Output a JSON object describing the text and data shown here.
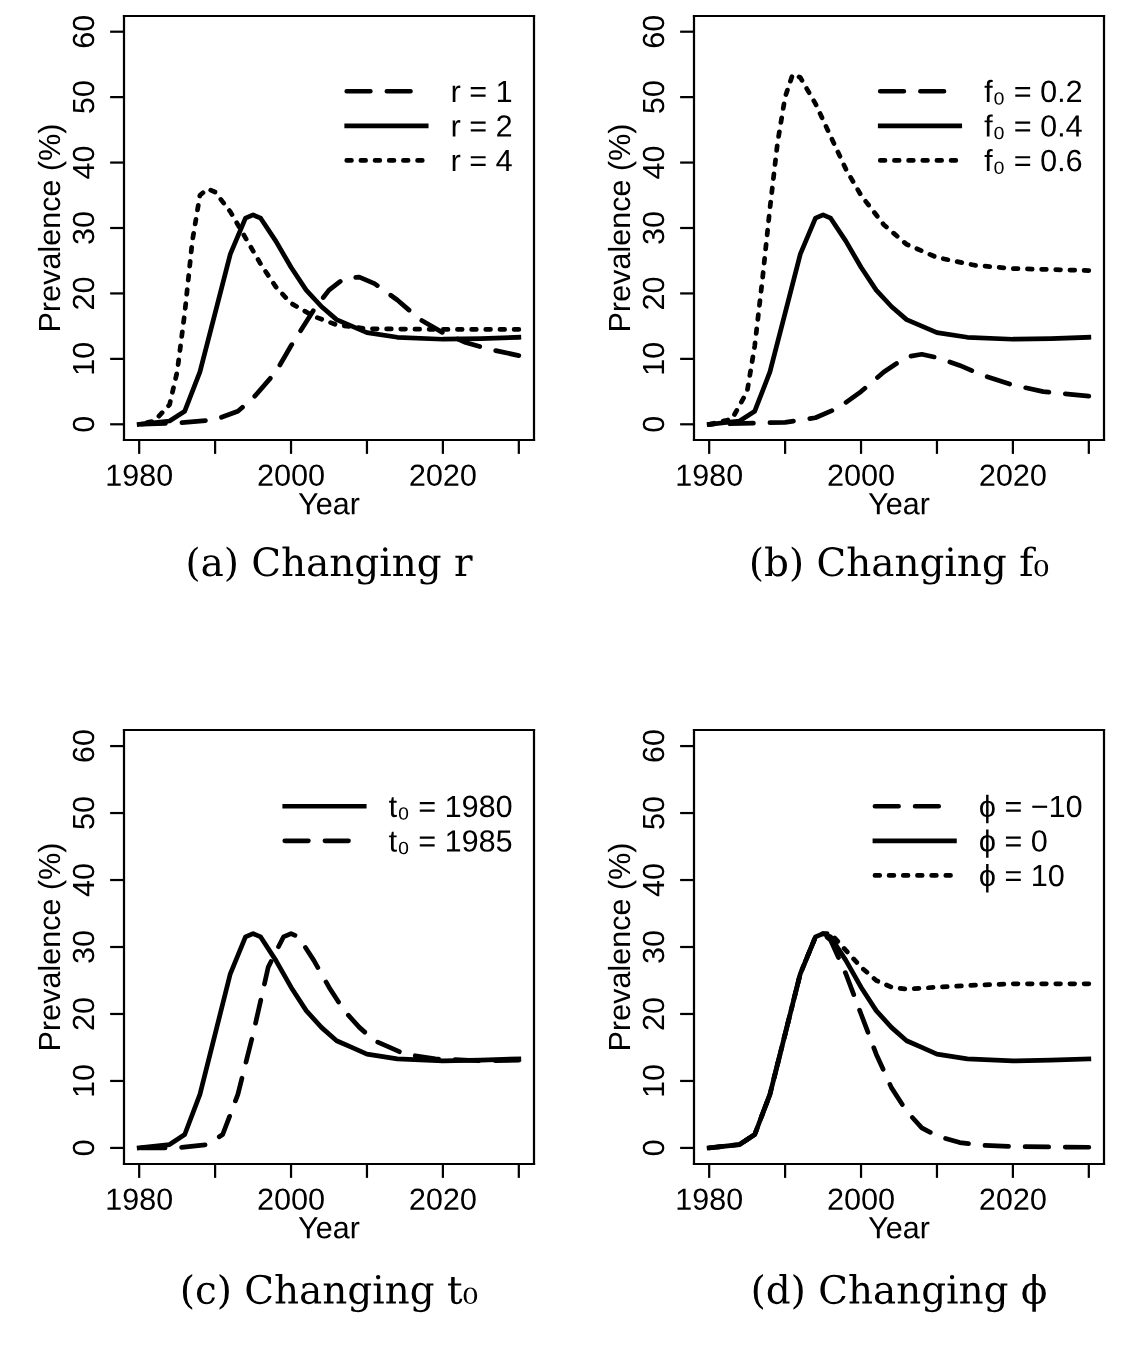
{
  "chart_data": [
    {
      "type": "line",
      "title": "(a) Changing r",
      "xlabel": "Year",
      "ylabel": "Prevalence (%)",
      "xlim": [
        1978,
        2032
      ],
      "ylim": [
        -2.4,
        62.4
      ],
      "xticks": [
        1980,
        {
          "value": 1990,
          "label": null
        },
        2000,
        {
          "value": 2010,
          "label": null
        },
        2020,
        {
          "value": 2030,
          "label": null
        }
      ],
      "yticks": [
        0,
        10,
        20,
        30,
        40,
        50,
        60
      ],
      "legend": "top right",
      "grid": false,
      "marker": "none",
      "series": [
        {
          "name": "r = 1",
          "color": "#000000",
          "line_style": "dashed",
          "x": [
            1980,
            1985,
            1990,
            1993,
            1995,
            1998,
            2000,
            2003,
            2005,
            2007,
            2009,
            2011,
            2014,
            2017,
            2020,
            2023,
            2026,
            2030
          ],
          "values": [
            0,
            0.2,
            0.7,
            2,
            4,
            8,
            12,
            17.5,
            20.5,
            22.3,
            22.5,
            21.5,
            19,
            16,
            14,
            12.5,
            11.5,
            10.5
          ]
        },
        {
          "name": "r = 2",
          "color": "#000000",
          "line_style": "solid",
          "x": [
            1980,
            1984,
            1986,
            1988,
            1990,
            1992,
            1994,
            1995,
            1996,
            1998,
            2000,
            2002,
            2004,
            2006,
            2008,
            2010,
            2014,
            2020,
            2025,
            2030
          ],
          "values": [
            0,
            0.5,
            2,
            8,
            17,
            26,
            31.5,
            32,
            31.5,
            28,
            24,
            20.5,
            18,
            16,
            15,
            14,
            13.3,
            13,
            13.1,
            13.3
          ]
        },
        {
          "name": "r = 4",
          "color": "#000000",
          "line_style": "dotted",
          "x": [
            1980,
            1982,
            1984,
            1985,
            1986,
            1987,
            1988,
            1989,
            1990,
            1992,
            1994,
            1996,
            1998,
            2000,
            2003,
            2006,
            2010,
            2020,
            2030
          ],
          "values": [
            0,
            0.5,
            3,
            8,
            17,
            28,
            35,
            36,
            35.5,
            32.5,
            28.5,
            24.5,
            21,
            18.5,
            16.5,
            15.2,
            14.6,
            14.5,
            14.5
          ]
        }
      ]
    },
    {
      "type": "line",
      "title": "(b) Changing f₀",
      "xlabel": "Year",
      "ylabel": "Prevalence (%)",
      "xlim": [
        1978,
        2032
      ],
      "ylim": [
        -2.4,
        62.4
      ],
      "xticks": [
        1980,
        {
          "value": 1990,
          "label": null
        },
        2000,
        {
          "value": 2010,
          "label": null
        },
        2020,
        {
          "value": 2030,
          "label": null
        }
      ],
      "yticks": [
        0,
        10,
        20,
        30,
        40,
        50,
        60
      ],
      "legend": "top right",
      "grid": false,
      "marker": "none",
      "series": [
        {
          "name": "f₀ = 0.2",
          "color": "#000000",
          "line_style": "dashed",
          "x": [
            1980,
            1990,
            1994,
            1997,
            2000,
            2003,
            2006,
            2008,
            2010,
            2013,
            2016,
            2020,
            2024,
            2030
          ],
          "values": [
            0,
            0.3,
            1,
            2.5,
            5,
            8,
            10.3,
            10.7,
            10.2,
            9,
            7.5,
            6,
            5,
            4.3
          ]
        },
        {
          "name": "f₀ = 0.4",
          "color": "#000000",
          "line_style": "solid",
          "x": [
            1980,
            1984,
            1986,
            1988,
            1990,
            1992,
            1994,
            1995,
            1996,
            1998,
            2000,
            2002,
            2004,
            2006,
            2008,
            2010,
            2014,
            2020,
            2025,
            2030
          ],
          "values": [
            0,
            0.5,
            2,
            8,
            17,
            26,
            31.5,
            32,
            31.5,
            28,
            24,
            20.5,
            18,
            16,
            15,
            14,
            13.3,
            13,
            13.1,
            13.3
          ]
        },
        {
          "name": "f₀ = 0.6",
          "color": "#000000",
          "line_style": "dotted",
          "x": [
            1980,
            1983,
            1985,
            1986,
            1987,
            1988,
            1989,
            1990,
            1991,
            1992,
            1994,
            1996,
            1998,
            2000,
            2003,
            2006,
            2010,
            2015,
            2020,
            2030
          ],
          "values": [
            0,
            0.8,
            5,
            12,
            22,
            33,
            43,
            50,
            53.5,
            53,
            49,
            44,
            39,
            35,
            30.5,
            27.5,
            25.5,
            24.3,
            23.8,
            23.5
          ]
        }
      ]
    },
    {
      "type": "line",
      "title": "(c) Changing t₀",
      "xlabel": "Year",
      "ylabel": "Prevalence (%)",
      "xlim": [
        1978,
        2032
      ],
      "ylim": [
        -2.4,
        62.4
      ],
      "xticks": [
        1980,
        {
          "value": 1990,
          "label": null
        },
        2000,
        {
          "value": 2010,
          "label": null
        },
        2020,
        {
          "value": 2030,
          "label": null
        }
      ],
      "yticks": [
        0,
        10,
        20,
        30,
        40,
        50,
        60
      ],
      "legend": "top right",
      "grid": false,
      "marker": "none",
      "series": [
        {
          "name": "t₀ = 1980",
          "color": "#000000",
          "line_style": "solid",
          "x": [
            1980,
            1984,
            1986,
            1988,
            1990,
            1992,
            1994,
            1995,
            1996,
            1998,
            2000,
            2002,
            2004,
            2006,
            2008,
            2010,
            2014,
            2020,
            2025,
            2030
          ],
          "values": [
            0,
            0.5,
            2,
            8,
            17,
            26,
            31.5,
            32,
            31.5,
            28,
            24,
            20.5,
            18,
            16,
            15,
            14,
            13.3,
            13,
            13.1,
            13.3
          ]
        },
        {
          "name": "t₀ = 1985",
          "color": "#000000",
          "line_style": "dashed",
          "x": [
            1980,
            1985,
            1989,
            1991,
            1993,
            1995,
            1997,
            1999,
            2000,
            2001,
            2003,
            2005,
            2007,
            2009,
            2011,
            2013,
            2015,
            2019,
            2025,
            2030
          ],
          "values": [
            0,
            0,
            0.5,
            2,
            8,
            17,
            27,
            31.5,
            32,
            31.5,
            28,
            24,
            20.5,
            18,
            16,
            15,
            14,
            13.3,
            13,
            13.1
          ]
        }
      ]
    },
    {
      "type": "line",
      "title": "(d) Changing ϕ",
      "xlabel": "Year",
      "ylabel": "Prevalence (%)",
      "xlim": [
        1978,
        2032
      ],
      "ylim": [
        -2.4,
        62.4
      ],
      "xticks": [
        1980,
        {
          "value": 1990,
          "label": null
        },
        2000,
        {
          "value": 2010,
          "label": null
        },
        2020,
        {
          "value": 2030,
          "label": null
        }
      ],
      "yticks": [
        0,
        10,
        20,
        30,
        40,
        50,
        60
      ],
      "legend": "top right",
      "grid": false,
      "marker": "none",
      "series": [
        {
          "name": "ϕ = −10",
          "color": "#000000",
          "line_style": "dashed",
          "x": [
            1980,
            1984,
            1986,
            1988,
            1990,
            1992,
            1994,
            1995,
            1996,
            1998,
            2000,
            2002,
            2004,
            2006,
            2008,
            2010,
            2013,
            2016,
            2020,
            2030
          ],
          "values": [
            0,
            0.5,
            2,
            8,
            17,
            26,
            31.5,
            32,
            31,
            26,
            20,
            14,
            9,
            5.5,
            3,
            1.8,
            0.8,
            0.4,
            0.2,
            0.1
          ]
        },
        {
          "name": "ϕ = 0",
          "color": "#000000",
          "line_style": "solid",
          "x": [
            1980,
            1984,
            1986,
            1988,
            1990,
            1992,
            1994,
            1995,
            1996,
            1998,
            2000,
            2002,
            2004,
            2006,
            2008,
            2010,
            2014,
            2020,
            2025,
            2030
          ],
          "values": [
            0,
            0.5,
            2,
            8,
            17,
            26,
            31.5,
            32,
            31.5,
            28,
            24,
            20.5,
            18,
            16,
            15,
            14,
            13.3,
            13,
            13.1,
            13.3
          ]
        },
        {
          "name": "ϕ = 10",
          "color": "#000000",
          "line_style": "dotted",
          "x": [
            1980,
            1984,
            1986,
            1988,
            1990,
            1992,
            1994,
            1995,
            1996,
            1998,
            2000,
            2002,
            2004,
            2006,
            2010,
            2015,
            2020,
            2030
          ],
          "values": [
            0,
            0.5,
            2,
            8,
            17,
            26,
            31.5,
            32,
            32,
            29.5,
            27,
            25,
            24,
            23.7,
            24,
            24.3,
            24.5,
            24.5
          ]
        }
      ]
    }
  ]
}
